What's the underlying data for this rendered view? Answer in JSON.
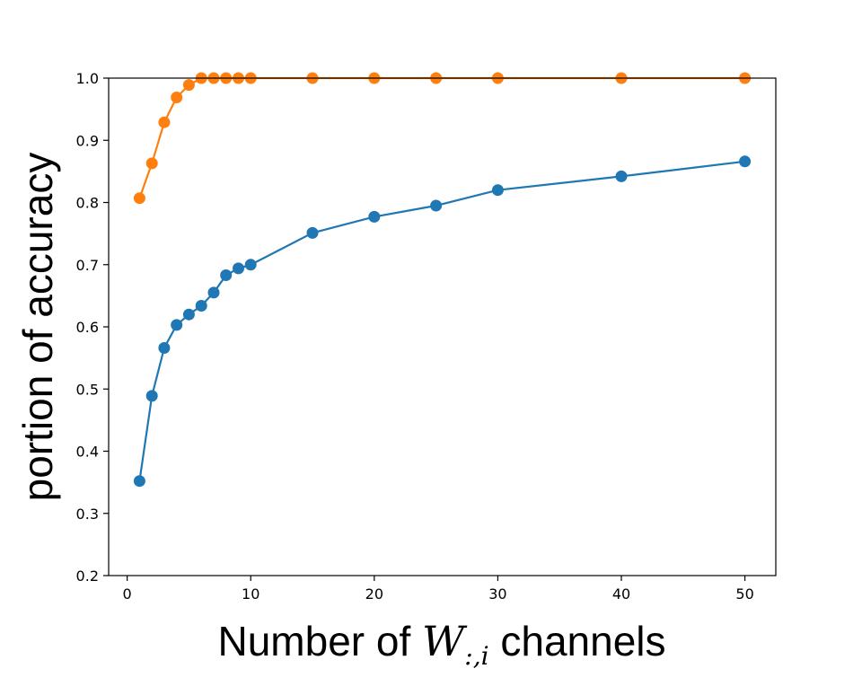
{
  "chart_data": {
    "type": "line",
    "xlabel_prefix": "Number of ",
    "xlabel_math_main": "W",
    "xlabel_math_sub": ":,i",
    "xlabel_suffix": " channels",
    "ylabel": "portion of accuracy",
    "xlim": [
      -1.5,
      52.5
    ],
    "ylim": [
      0.2,
      1.0
    ],
    "xticks": [
      0,
      10,
      20,
      30,
      40,
      50
    ],
    "yticks": [
      0.2,
      0.3,
      0.4,
      0.5,
      0.6,
      0.7,
      0.8,
      0.9,
      1.0
    ],
    "ytick_labels": [
      "0.2",
      "0.3",
      "0.4",
      "0.5",
      "0.6",
      "0.7",
      "0.8",
      "0.9",
      "1.0"
    ],
    "grid": false,
    "x": [
      1,
      2,
      3,
      4,
      5,
      6,
      7,
      8,
      9,
      10,
      15,
      20,
      25,
      30,
      40,
      50
    ],
    "series": [
      {
        "color": "#1f77b4",
        "values": [
          0.352,
          0.489,
          0.566,
          0.603,
          0.62,
          0.634,
          0.655,
          0.683,
          0.694,
          0.7,
          0.751,
          0.777,
          0.795,
          0.82,
          0.842,
          0.866
        ]
      },
      {
        "color": "#ff7f0e",
        "values": [
          0.807,
          0.863,
          0.929,
          0.969,
          0.989,
          1.0,
          1.0,
          1.0,
          1.0,
          1.0,
          1.0,
          1.0,
          1.0,
          1.0,
          1.0,
          1.0
        ]
      }
    ]
  }
}
